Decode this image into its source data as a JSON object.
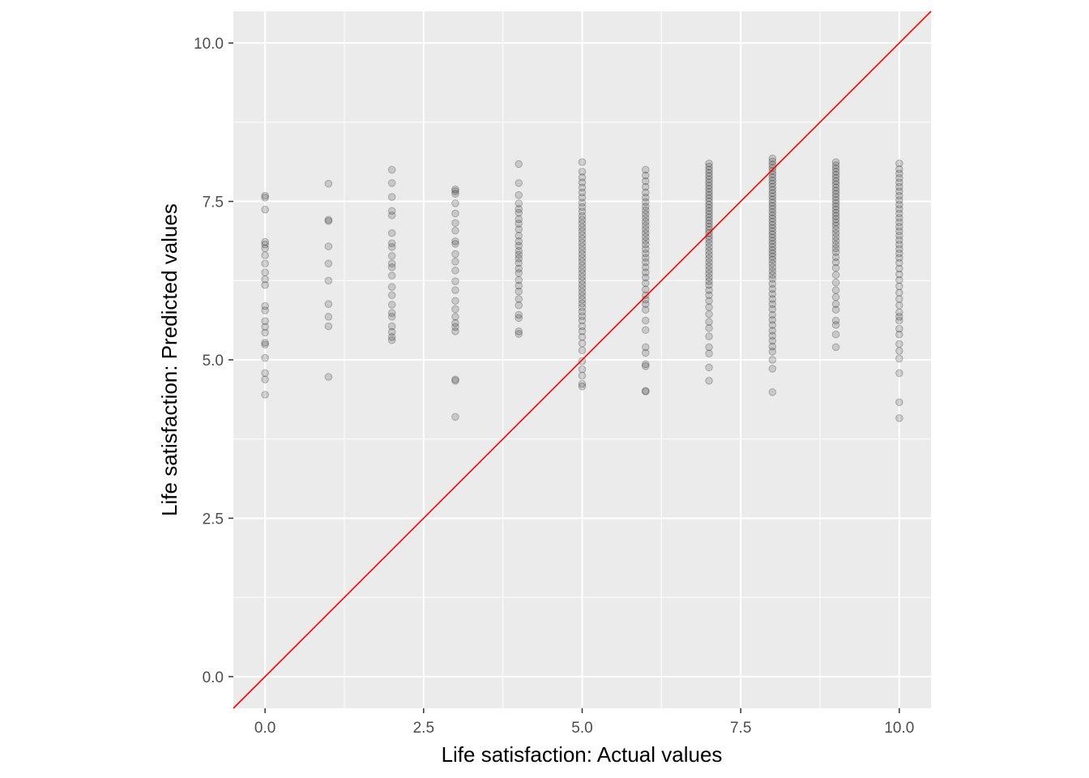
{
  "chart_data": {
    "type": "scatter",
    "title": "",
    "xlabel": "Life satisfaction: Actual values",
    "ylabel": "Life satisfaction: Predicted values",
    "xlim": [
      -0.5,
      10.5
    ],
    "ylim": [
      -0.5,
      10.5
    ],
    "x_ticks": [
      "0.0",
      "2.5",
      "5.0",
      "7.5",
      "10.0"
    ],
    "y_ticks": [
      "0.0",
      "2.5",
      "5.0",
      "7.5",
      "10.0"
    ],
    "grid": true,
    "point_color": "#000000",
    "point_opacity": 0.15,
    "reference_line": {
      "type": "identity",
      "slope": 1,
      "intercept": 0,
      "color": "#ff0000"
    },
    "series": [
      {
        "x": 0,
        "values": [
          7.59,
          7.56,
          7.37,
          6.86,
          6.82,
          6.76,
          6.65,
          6.52,
          6.38,
          6.27,
          6.18,
          5.85,
          5.78,
          5.61,
          5.52,
          5.43,
          5.27,
          5.24,
          5.03,
          4.79,
          4.69,
          4.45
        ]
      },
      {
        "x": 1,
        "values": [
          7.78,
          7.21,
          7.19,
          6.79,
          6.52,
          6.25,
          5.88,
          5.68,
          5.53,
          4.73
        ]
      },
      {
        "x": 2,
        "values": [
          8.0,
          7.79,
          7.57,
          7.35,
          7.28,
          7.0,
          6.84,
          6.78,
          6.64,
          6.52,
          6.46,
          6.33,
          6.15,
          6.02,
          5.87,
          5.74,
          5.68,
          5.53,
          5.44,
          5.36,
          5.31
        ]
      },
      {
        "x": 3,
        "values": [
          7.69,
          7.66,
          7.62,
          7.47,
          7.31,
          7.16,
          7.04,
          6.87,
          6.83,
          6.67,
          6.55,
          6.41,
          6.24,
          6.1,
          5.93,
          5.8,
          5.68,
          5.58,
          5.52,
          5.45,
          4.69,
          4.67,
          4.1
        ]
      },
      {
        "x": 4,
        "values": [
          8.09,
          7.79,
          7.6,
          7.47,
          7.38,
          7.32,
          7.22,
          7.15,
          7.06,
          6.96,
          6.87,
          6.8,
          6.72,
          6.66,
          6.6,
          6.53,
          6.44,
          6.37,
          6.26,
          6.17,
          6.08,
          5.96,
          5.86,
          5.71,
          5.66,
          5.45,
          5.41
        ]
      },
      {
        "x": 5,
        "values": [
          8.12,
          7.97,
          7.88,
          7.8,
          7.72,
          7.64,
          7.56,
          7.48,
          7.41,
          7.34,
          7.27,
          7.21,
          7.15,
          7.09,
          7.03,
          6.97,
          6.91,
          6.85,
          6.79,
          6.73,
          6.67,
          6.61,
          6.55,
          6.49,
          6.43,
          6.37,
          6.31,
          6.25,
          6.19,
          6.13,
          6.07,
          6.01,
          5.95,
          5.89,
          5.83,
          5.76,
          5.69,
          5.62,
          5.53,
          5.45,
          5.36,
          5.26,
          5.15,
          4.98,
          4.85,
          4.75,
          4.62,
          4.58
        ]
      },
      {
        "x": 6,
        "values": [
          8.0,
          7.91,
          7.82,
          7.73,
          7.64,
          7.56,
          7.49,
          7.42,
          7.36,
          7.3,
          7.24,
          7.18,
          7.12,
          7.06,
          7.0,
          6.94,
          6.88,
          6.82,
          6.75,
          6.68,
          6.61,
          6.54,
          6.46,
          6.38,
          6.3,
          6.21,
          6.11,
          6.02,
          5.95,
          5.88,
          5.79,
          5.62,
          5.47,
          5.2,
          5.11,
          4.93,
          4.9,
          4.51,
          4.5
        ]
      },
      {
        "x": 7,
        "values": [
          8.1,
          8.05,
          8.0,
          7.95,
          7.9,
          7.85,
          7.8,
          7.75,
          7.7,
          7.65,
          7.6,
          7.55,
          7.5,
          7.45,
          7.4,
          7.35,
          7.3,
          7.25,
          7.2,
          7.15,
          7.1,
          7.05,
          7.0,
          6.95,
          6.9,
          6.84,
          6.78,
          6.72,
          6.66,
          6.6,
          6.54,
          6.48,
          6.42,
          6.36,
          6.3,
          6.24,
          6.18,
          6.1,
          6.02,
          5.93,
          5.83,
          5.72,
          5.6,
          5.5,
          5.37,
          5.2,
          5.1,
          4.88,
          4.67
        ]
      },
      {
        "x": 8,
        "values": [
          8.18,
          8.13,
          8.08,
          8.03,
          7.98,
          7.93,
          7.88,
          7.83,
          7.78,
          7.73,
          7.68,
          7.63,
          7.58,
          7.53,
          7.48,
          7.43,
          7.38,
          7.33,
          7.28,
          7.23,
          7.18,
          7.13,
          7.08,
          7.03,
          6.98,
          6.93,
          6.88,
          6.83,
          6.78,
          6.73,
          6.68,
          6.63,
          6.58,
          6.52,
          6.46,
          6.4,
          6.34,
          6.28,
          6.2,
          6.12,
          6.04,
          5.96,
          5.88,
          5.8,
          5.71,
          5.63,
          5.55,
          5.46,
          5.38,
          5.3,
          5.21,
          5.13,
          5.0,
          4.86,
          4.49
        ]
      },
      {
        "x": 9,
        "values": [
          8.12,
          8.07,
          8.02,
          7.97,
          7.92,
          7.87,
          7.82,
          7.77,
          7.72,
          7.67,
          7.62,
          7.57,
          7.52,
          7.47,
          7.42,
          7.37,
          7.32,
          7.27,
          7.22,
          7.17,
          7.12,
          7.06,
          7.0,
          6.94,
          6.88,
          6.82,
          6.76,
          6.7,
          6.62,
          6.54,
          6.45,
          6.34,
          6.22,
          6.1,
          5.99,
          5.88,
          5.79,
          5.62,
          5.55,
          5.4,
          5.2
        ]
      },
      {
        "x": 10,
        "values": [
          8.1,
          8.01,
          7.94,
          7.87,
          7.8,
          7.73,
          7.66,
          7.59,
          7.52,
          7.45,
          7.38,
          7.31,
          7.24,
          7.17,
          7.1,
          7.03,
          6.96,
          6.89,
          6.82,
          6.75,
          6.68,
          6.61,
          6.53,
          6.44,
          6.35,
          6.26,
          6.16,
          6.06,
          5.96,
          5.86,
          5.75,
          5.68,
          5.62,
          5.49,
          5.4,
          5.25,
          5.14,
          5.02,
          4.79,
          4.33,
          4.08
        ]
      }
    ]
  }
}
